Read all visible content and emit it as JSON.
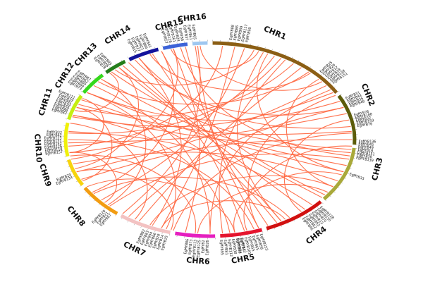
{
  "chromosomes": [
    {
      "label": "CHR1",
      "color": "#8b5e14"
    },
    {
      "label": "CHR2",
      "color": "#5c5c0b"
    },
    {
      "label": "CHR3",
      "color": "#a9a93a"
    },
    {
      "label": "CHR4",
      "color": "#d11010"
    },
    {
      "label": "CHR5",
      "color": "#e5152e"
    },
    {
      "label": "CHR6",
      "color": "#e51fbf"
    },
    {
      "label": "CHR7",
      "color": "#f3c2c2"
    },
    {
      "label": "CHR8",
      "color": "#f29c12"
    },
    {
      "label": "CHR9",
      "color": "#f7d40d"
    },
    {
      "label": "CHR10",
      "color": "#f0f00a"
    },
    {
      "label": "CHR11",
      "color": "#c5ee10"
    },
    {
      "label": "CHR12",
      "color": "#36d81c"
    },
    {
      "label": "CHR13",
      "color": "#247e1b"
    },
    {
      "label": "CHR14",
      "color": "#13139c"
    },
    {
      "label": "CHR15",
      "color": "#3d63d8"
    },
    {
      "label": "CHR16",
      "color": "#9ec7f0"
    }
  ],
  "gene_groups": [
    {
      "chr": 1,
      "genes": [
        "EgMYB88",
        "EgMYB86",
        "EgMYB69",
        "EgMYB117",
        "EgMYB99"
      ]
    },
    {
      "chr": 1,
      "genes": [
        "EgMYB25",
        "EgMYB26",
        "EgMYB12",
        "EgMYB28",
        "EgMYB138",
        "EgMYB151"
      ]
    },
    {
      "chr": 2,
      "genes": [
        "EgMYB31",
        "EgMYB44",
        "EgMYB36",
        "EgMYB40"
      ]
    },
    {
      "chr": 2,
      "genes": [
        "EgMYB76",
        "EgMYB100",
        "EgMYB32",
        "EgMYB159",
        "EgMYB70"
      ]
    },
    {
      "chr": 3,
      "genes": [
        "EgMYB136",
        "EgMYB45",
        "EgMYB49",
        "EgMYB10",
        "EgMYB151",
        "EgMYB30",
        "EgMYB130"
      ]
    },
    {
      "chr": 3,
      "genes": [
        "EgMYB33"
      ]
    },
    {
      "chr": 4,
      "genes": [
        "EgMYB128",
        "EgMYB135",
        "EgMYB79",
        "EgMYB13",
        "EgMYB53",
        "EgMYB62",
        "EgMYB48"
      ]
    },
    {
      "chr": 5,
      "genes": [
        "EgMYB153",
        "EgMYB58",
        "EgMYB65",
        "EgMYB55",
        "EgMYB101",
        "EgMYB42",
        "EgMYB84"
      ]
    },
    {
      "chr": 5,
      "genes": [
        "EgMYB3",
        "EgMYB60",
        "EgMYB38",
        "EgMYB112",
        "EgMYB81",
        "EgMYB95"
      ]
    },
    {
      "chr": 6,
      "genes": [
        "EgMYB26",
        "EgMYB2",
        "EgMYB125",
        "EgMYB113",
        "EgMYB73",
        "EgMYB86"
      ]
    },
    {
      "chr": 7,
      "genes": [
        "EgMYB25",
        "EgMYB14",
        "EgMYB20",
        "EgMYB96",
        "EgMYB94",
        "EgMYB83",
        "EgMYB82"
      ]
    },
    {
      "chr": 8,
      "genes": [
        "EgMYB67",
        "EgMYB21",
        "EgMYB120"
      ]
    },
    {
      "chr": 9,
      "genes": [
        "EgMYB134",
        "EgMYB29"
      ]
    },
    {
      "chr": 10,
      "genes": [
        "EgMYB157",
        "EgMYB118",
        "EgMYB126",
        "EgMYB152",
        "EgMYB131",
        "EgMYB123",
        "EgMYB42",
        "EgMYB32"
      ]
    },
    {
      "chr": 11,
      "genes": [
        "EgMYB83",
        "EgMYB80",
        "EgMYB59",
        "EgMYB39",
        "EgMYB01",
        "EgMYB19",
        "EgMYB111"
      ]
    },
    {
      "chr": 12,
      "genes": [
        "EgMYB73",
        "EgMYB90",
        "EgMYB09",
        "EgMYB62",
        "EgMYB87"
      ]
    },
    {
      "chr": 13,
      "genes": [
        "EgMYB78",
        "EgMYB88",
        "EgMYB85"
      ]
    },
    {
      "chr": 14,
      "genes": [
        "EgMYB15",
        "EgMYB27",
        "EgMYB21",
        "EgMYB06",
        "EgMYB41"
      ]
    },
    {
      "chr": 15,
      "genes": [
        "EgMYB57",
        "EgMYB126",
        "EgMYB161",
        "EgMYB24",
        "EgMYB8"
      ]
    },
    {
      "chr": 16,
      "genes": [
        "EgMYB37",
        "EgMYB61",
        "EgMYB65"
      ]
    }
  ],
  "colors": {
    "links": "#ff6a45"
  }
}
